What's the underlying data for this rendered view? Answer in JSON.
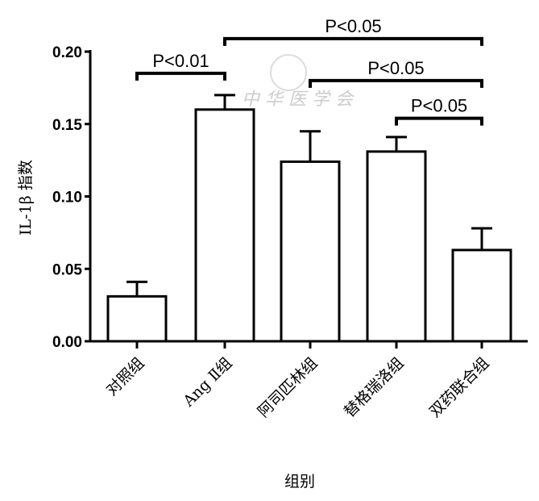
{
  "chart_data": {
    "type": "bar",
    "title": "",
    "xlabel": "组别",
    "ylabel": "IL-1β 指数",
    "categories": [
      "对照组",
      "Ang Ⅱ组",
      "阿司匹林组",
      "替格瑞洛组",
      "双药联合组"
    ],
    "values": [
      0.031,
      0.16,
      0.124,
      0.131,
      0.063
    ],
    "error_upper": [
      0.041,
      0.17,
      0.145,
      0.141,
      0.078
    ],
    "ylim": [
      0,
      0.2
    ],
    "yticks": [
      "0.00",
      "0.05",
      "0.10",
      "0.15",
      "0.20"
    ],
    "ytick_values": [
      0,
      0.05,
      0.1,
      0.15,
      0.2
    ],
    "grid": false,
    "annotations": [
      {
        "text": "P<0.01",
        "from": 0,
        "to": 1,
        "level": 0.185
      },
      {
        "text": "P<0.05",
        "from": 1,
        "to": 4,
        "level": 0.209
      },
      {
        "text": "P<0.05",
        "from": 2,
        "to": 4,
        "level": 0.18
      },
      {
        "text": "P<0.05",
        "from": 3,
        "to": 4,
        "level": 0.154
      }
    ],
    "watermark": "中 华 医 学 会"
  }
}
